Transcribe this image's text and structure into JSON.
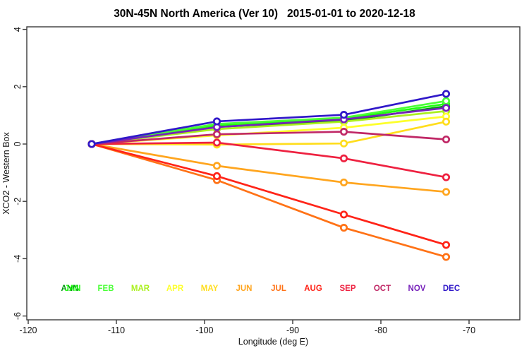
{
  "chart_data": {
    "type": "line",
    "title": "30N-45N North America (Ver 10)   2015-01-01 to 2020-12-18",
    "xlabel": "Longitude (deg E)",
    "ylabel": "XCO2 - Western Box",
    "xlim": [
      -120,
      -64.2
    ],
    "ylim": [
      -6.1,
      4.1
    ],
    "x_ticks": [
      -120,
      -110,
      -100,
      -90,
      -80,
      -70
    ],
    "y_ticks": [
      4,
      2,
      0,
      -2,
      -4,
      -6
    ],
    "grid": false,
    "marker": "open-circle",
    "x": [
      -112.8,
      -98.6,
      -84.2,
      -72.6
    ],
    "series": [
      {
        "name": "ANN",
        "color": "#009911",
        "values": [
          0,
          0.6,
          0.8,
          1.32
        ]
      },
      {
        "name": "JAN",
        "color": "#1fff0f",
        "values": [
          0,
          0.66,
          0.88,
          1.4
        ]
      },
      {
        "name": "FEB",
        "color": "#49ff36",
        "values": [
          0,
          0.7,
          0.92,
          1.5
        ]
      },
      {
        "name": "MAR",
        "color": "#aaf01e",
        "values": [
          0,
          0.52,
          0.78,
          1.15
        ]
      },
      {
        "name": "APR",
        "color": "#fdff2b",
        "values": [
          0,
          0.3,
          0.57,
          0.96
        ]
      },
      {
        "name": "MAY",
        "color": "#ffdd1c",
        "values": [
          0,
          -0.02,
          0.02,
          0.78
        ]
      },
      {
        "name": "JUN",
        "color": "#ffa51e",
        "values": [
          0,
          -0.76,
          -1.34,
          -1.67
        ]
      },
      {
        "name": "JUL",
        "color": "#ff7216",
        "values": [
          0,
          -1.26,
          -2.92,
          -3.94
        ]
      },
      {
        "name": "AUG",
        "color": "#ff2418",
        "values": [
          0,
          -1.12,
          -2.46,
          -3.52
        ]
      },
      {
        "name": "SEP",
        "color": "#ee2140",
        "values": [
          0,
          0.05,
          -0.5,
          -1.16
        ]
      },
      {
        "name": "OCT",
        "color": "#c02866",
        "values": [
          0,
          0.34,
          0.43,
          0.16
        ]
      },
      {
        "name": "NOV",
        "color": "#7722bb",
        "values": [
          0,
          0.59,
          0.86,
          1.26
        ]
      },
      {
        "name": "DEC",
        "color": "#3018c9",
        "values": [
          0,
          0.79,
          1.02,
          1.75
        ]
      }
    ],
    "legend": {
      "labels": [
        "ANN",
        "JAN",
        "FEB",
        "MAR",
        "APR",
        "MAY",
        "JUN",
        "JUL",
        "AUG",
        "SEP",
        "OCT",
        "NOV",
        "DEC"
      ],
      "position": "inside-bottom",
      "note": "ANN and JAN labels overlap in the first slot"
    }
  }
}
